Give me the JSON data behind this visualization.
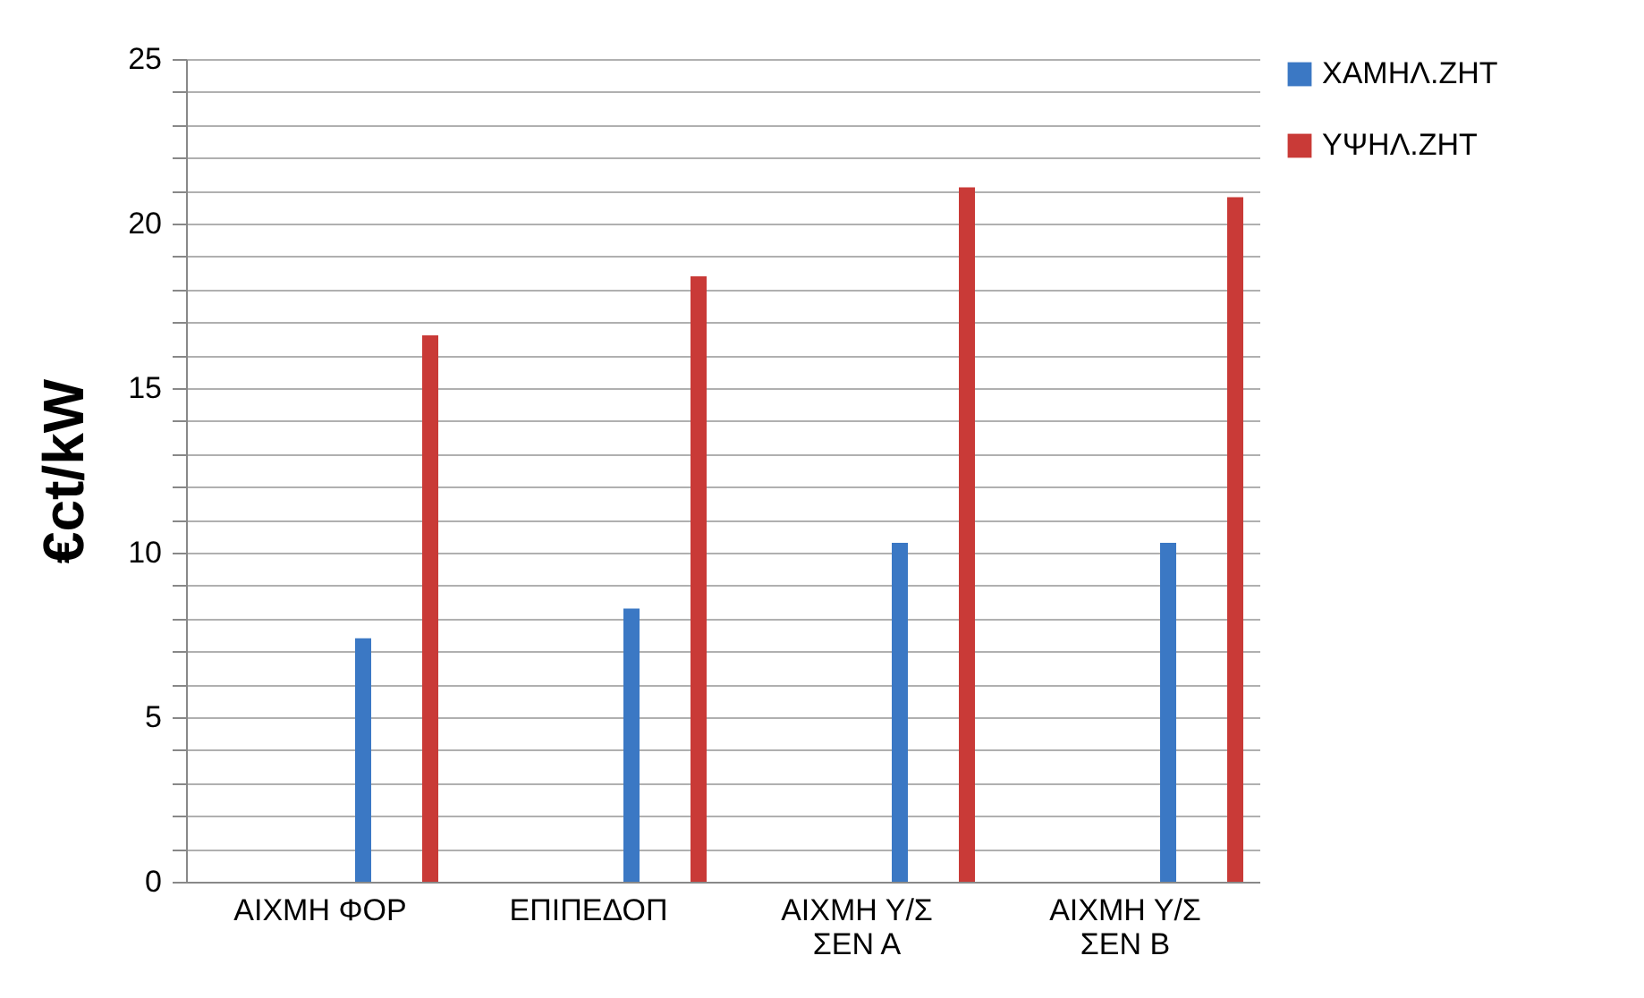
{
  "chart_data": {
    "type": "bar",
    "ylabel": "€ct/kW",
    "categories": [
      "ΑΙΧΜΗ ΦΟΡ",
      "ΕΠΙΠΕΔΟΠ",
      "ΑΙΧΜΗ Υ/Σ\nΣΕΝ Α",
      "ΑΙΧΜΗ Υ/Σ\nΣΕΝ Β"
    ],
    "series": [
      {
        "name": "ΧΑΜΗΛ.ΖΗΤ",
        "color": "#3b78c4",
        "values": [
          7.4,
          8.3,
          10.3,
          10.3
        ]
      },
      {
        "name": "ΥΨΗΛ.ΖΗΤ",
        "color": "#c93a37",
        "values": [
          16.6,
          18.4,
          21.1,
          20.8
        ]
      }
    ],
    "ylim": [
      0,
      25
    ],
    "yticks": [
      0,
      {
        "value": 1,
        "label": null
      },
      {
        "value": 2,
        "label": null
      },
      {
        "value": 3,
        "label": null
      },
      {
        "value": 4,
        "label": null
      },
      5,
      {
        "value": 6,
        "label": null
      },
      {
        "value": 7,
        "label": null
      },
      {
        "value": 8,
        "label": null
      },
      {
        "value": 9,
        "label": null
      },
      10,
      {
        "value": 11,
        "label": null
      },
      {
        "value": 12,
        "label": null
      },
      {
        "value": 13,
        "label": null
      },
      {
        "value": 14,
        "label": null
      },
      15,
      {
        "value": 16,
        "label": null
      },
      {
        "value": 17,
        "label": null
      },
      {
        "value": 18,
        "label": null
      },
      {
        "value": 19,
        "label": null
      },
      20,
      {
        "value": 21,
        "label": null
      },
      {
        "value": 22,
        "label": null
      },
      {
        "value": 23,
        "label": null
      },
      {
        "value": 24,
        "label": null
      },
      25
    ],
    "grid": true,
    "legend": "right"
  }
}
